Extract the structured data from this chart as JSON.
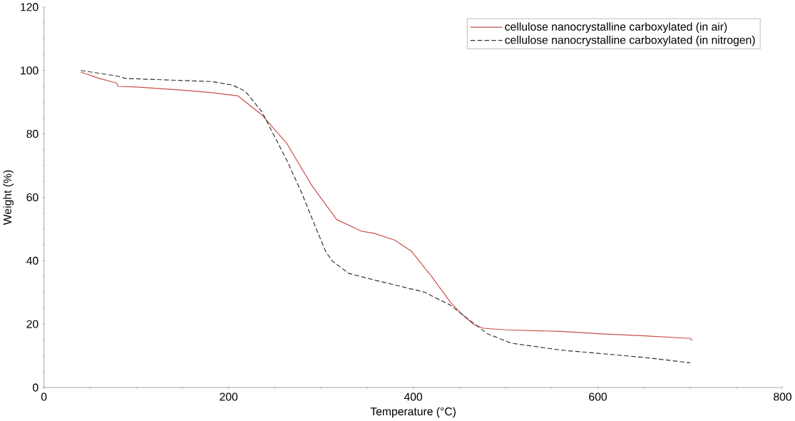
{
  "chart_data": {
    "type": "line",
    "xlabel": "Temperature (°C)",
    "ylabel": "Weight (%)",
    "xlim": [
      0,
      800
    ],
    "ylim": [
      0,
      120
    ],
    "xticks": [
      0,
      200,
      400,
      600,
      800
    ],
    "yticks": [
      0,
      20,
      40,
      60,
      80,
      100,
      120
    ],
    "grid": false,
    "legend": "top right",
    "marker": "none",
    "series": [
      {
        "name": "cellulose nanocrystalline carboxylated (in air)",
        "color": "#c8504a",
        "line_style": "solid",
        "x": [
          40,
          60,
          79,
          80,
          100,
          150,
          182,
          210,
          236,
          263,
          290,
          317,
          344,
          358,
          380,
          398,
          420,
          440,
          452,
          465,
          476,
          500,
          560,
          600,
          650,
          700,
          702
        ],
        "values": [
          99.5,
          97.5,
          96,
          95,
          94.8,
          93.8,
          93,
          92,
          86,
          77,
          63.8,
          53,
          49.3,
          48.6,
          46.5,
          43,
          35,
          27,
          23.3,
          20,
          18.7,
          18.2,
          17.7,
          17,
          16.3,
          15.5,
          14.8
        ]
      },
      {
        "name": "cellulose nanocrystalline carboxylated (in nitrogen)",
        "color": "#333333",
        "line_style": "dashed",
        "x": [
          40,
          80,
          88,
          182,
          204,
          218,
          236,
          263,
          279,
          295,
          305,
          312,
          330,
          358,
          412,
          440,
          452,
          480,
          506,
          560,
          600,
          650,
          700
        ],
        "values": [
          100,
          98.2,
          97.5,
          96.5,
          95.4,
          93.5,
          87,
          71.7,
          61.5,
          50,
          43,
          40,
          36,
          33.9,
          30.1,
          26,
          23.3,
          17,
          14,
          11.8,
          10.8,
          9.5,
          7.8
        ]
      }
    ]
  }
}
